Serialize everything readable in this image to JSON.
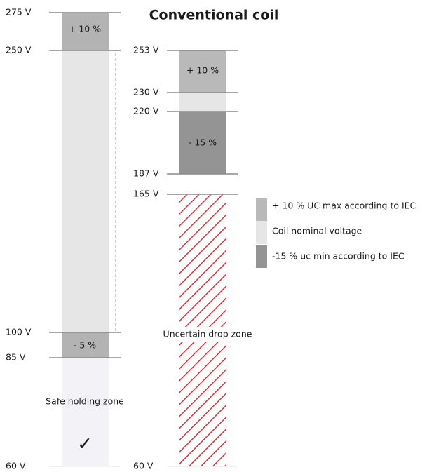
{
  "title": "Conventional coil",
  "left": {
    "levels": [
      "275 V",
      "250 V",
      "100 V",
      "85 V",
      "60 V"
    ],
    "segments": [
      "+ 10 %",
      "- 5 %"
    ],
    "zone": "Safe holding zone",
    "check": "✓"
  },
  "right": {
    "levels": [
      "253 V",
      "230 V",
      "220 V",
      "187 V",
      "165 V",
      "60 V"
    ],
    "segments": [
      "+ 10 %",
      "- 15 %"
    ],
    "zone": "Uncertain drop zone"
  },
  "legend": [
    "+ 10 % UC max according to IEC",
    "Coil nominal voltage",
    "-15 % uc min according to IEC"
  ]
}
